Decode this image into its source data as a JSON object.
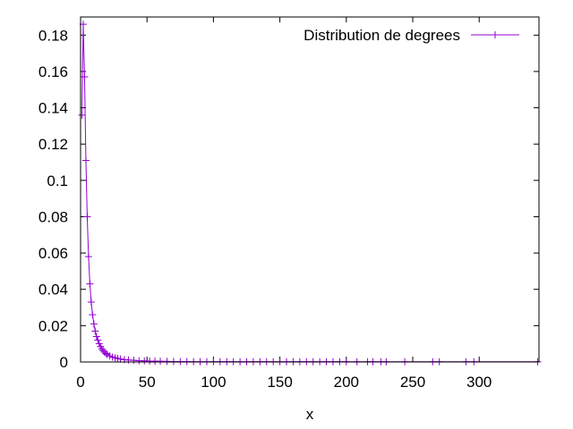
{
  "chart_data": {
    "type": "line",
    "xlabel": "x",
    "ylabel": "",
    "xlim": [
      0,
      345
    ],
    "ylim": [
      0,
      0.19
    ],
    "x_ticks": [
      0,
      50,
      100,
      150,
      200,
      250,
      300
    ],
    "y_ticks": [
      0,
      0.02,
      0.04,
      0.06,
      0.08,
      0.1,
      0.12,
      0.14,
      0.16,
      0.18
    ],
    "grid": false,
    "legend_position": "top-right",
    "series": [
      {
        "name": "Distribution de degrees",
        "color": "#9400d3",
        "marker": "plus",
        "x": [
          1,
          2,
          3,
          4,
          5,
          6,
          7,
          8,
          9,
          10,
          11,
          12,
          13,
          14,
          15,
          16,
          17,
          18,
          19,
          20,
          22,
          24,
          26,
          28,
          30,
          33,
          36,
          40,
          44,
          48,
          52,
          56,
          60,
          65,
          70,
          75,
          80,
          85,
          90,
          95,
          100,
          105,
          110,
          115,
          120,
          125,
          130,
          135,
          140,
          145,
          150,
          155,
          160,
          165,
          170,
          175,
          180,
          185,
          190,
          195,
          200,
          208,
          216,
          220,
          226,
          230,
          244,
          265,
          270,
          290,
          296,
          344
        ],
        "y": [
          0.136,
          0.186,
          0.157,
          0.111,
          0.08,
          0.058,
          0.043,
          0.033,
          0.026,
          0.021,
          0.017,
          0.014,
          0.012,
          0.01,
          0.0085,
          0.0072,
          0.0062,
          0.0054,
          0.0047,
          0.0041,
          0.0033,
          0.0027,
          0.0023,
          0.0019,
          0.0016,
          0.0013,
          0.0011,
          0.0009,
          0.0007,
          0.0006,
          0.0005,
          0.0004,
          0.00035,
          0.0003,
          0.00025,
          0.0002,
          0.0002,
          0.00015,
          0.00015,
          0.0001,
          0.0001,
          0.0001,
          0.0001,
          0.0001,
          0.0001,
          0.0001,
          0.0001,
          0.0001,
          0.0001,
          0.0001,
          0.0001,
          0.0001,
          0.0001,
          0.0001,
          0.0001,
          0.0001,
          0.0001,
          0.0001,
          0.0001,
          0.0001,
          0.0001,
          0.0001,
          0.0001,
          0.0001,
          0.0001,
          0.0001,
          0.0001,
          0.0001,
          0.0001,
          0.0001,
          0.0001,
          0.0001
        ]
      }
    ]
  }
}
